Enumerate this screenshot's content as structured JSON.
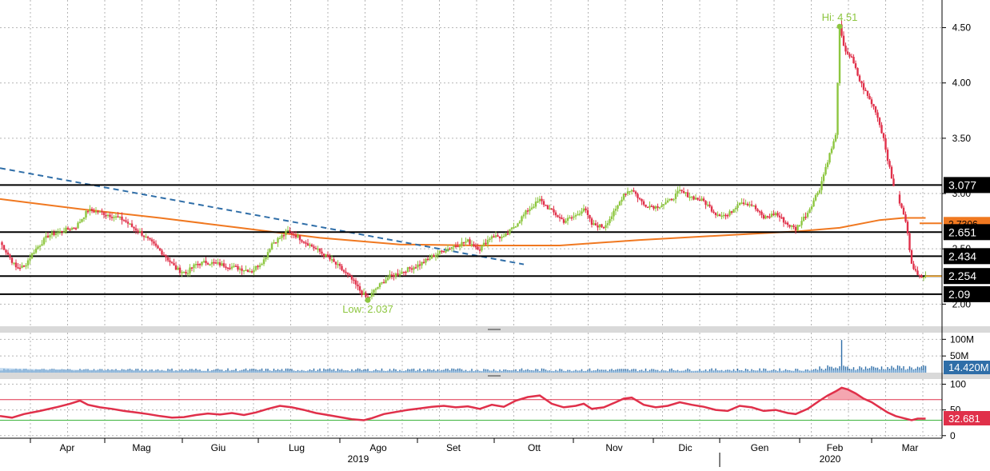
{
  "chart_data": {
    "type": "candlestick",
    "months": [
      "Apr",
      "Mag",
      "Giu",
      "Lug",
      "Ago",
      "Set",
      "Ott",
      "Nov",
      "Dic",
      "Gen",
      "Feb",
      "Mar"
    ],
    "years": [
      "2019",
      "2020"
    ],
    "price_panel": {
      "y_ticks": [
        "4.50",
        "4.00",
        "3.50",
        "3.00",
        "2.50",
        "2.00"
      ],
      "ylim": [
        1.8,
        4.75
      ],
      "price_points": [
        [
          0,
          2.56
        ],
        [
          4,
          2.45
        ],
        [
          8,
          2.33
        ],
        [
          12,
          2.34
        ],
        [
          17,
          2.48
        ],
        [
          24,
          2.62
        ],
        [
          31,
          2.66
        ],
        [
          38,
          2.7
        ],
        [
          44,
          2.85
        ],
        [
          50,
          2.83
        ],
        [
          56,
          2.8
        ],
        [
          62,
          2.76
        ],
        [
          66,
          2.7
        ],
        [
          70,
          2.65
        ],
        [
          76,
          2.55
        ],
        [
          82,
          2.45
        ],
        [
          88,
          2.32
        ],
        [
          93,
          2.28
        ],
        [
          98,
          2.36
        ],
        [
          103,
          2.38
        ],
        [
          110,
          2.36
        ],
        [
          118,
          2.33
        ],
        [
          126,
          2.3
        ],
        [
          132,
          2.4
        ],
        [
          136,
          2.55
        ],
        [
          140,
          2.6
        ],
        [
          144,
          2.66
        ],
        [
          148,
          2.62
        ],
        [
          152,
          2.57
        ],
        [
          158,
          2.5
        ],
        [
          164,
          2.42
        ],
        [
          170,
          2.33
        ],
        [
          176,
          2.22
        ],
        [
          181,
          2.1
        ],
        [
          184,
          2.05
        ],
        [
          188,
          2.14
        ],
        [
          194,
          2.24
        ],
        [
          202,
          2.3
        ],
        [
          210,
          2.36
        ],
        [
          218,
          2.45
        ],
        [
          226,
          2.52
        ],
        [
          234,
          2.57
        ],
        [
          240,
          2.5
        ],
        [
          246,
          2.62
        ],
        [
          252,
          2.6
        ],
        [
          258,
          2.72
        ],
        [
          264,
          2.85
        ],
        [
          270,
          2.94
        ],
        [
          276,
          2.84
        ],
        [
          282,
          2.75
        ],
        [
          288,
          2.8
        ],
        [
          292,
          2.87
        ],
        [
          296,
          2.72
        ],
        [
          302,
          2.7
        ],
        [
          308,
          2.85
        ],
        [
          312,
          3.0
        ],
        [
          316,
          3.04
        ],
        [
          322,
          2.9
        ],
        [
          328,
          2.88
        ],
        [
          334,
          2.92
        ],
        [
          340,
          3.02
        ],
        [
          346,
          2.97
        ],
        [
          352,
          2.93
        ],
        [
          358,
          2.82
        ],
        [
          364,
          2.8
        ],
        [
          370,
          2.93
        ],
        [
          376,
          2.9
        ],
        [
          382,
          2.78
        ],
        [
          388,
          2.82
        ],
        [
          394,
          2.72
        ],
        [
          398,
          2.68
        ],
        [
          404,
          2.83
        ],
        [
          410,
          3.05
        ],
        [
          414,
          3.3
        ],
        [
          418,
          3.52
        ],
        [
          420,
          4.51
        ],
        [
          422,
          4.32
        ],
        [
          426,
          4.22
        ],
        [
          430,
          4.02
        ],
        [
          434,
          3.88
        ],
        [
          438,
          3.75
        ],
        [
          442,
          3.5
        ],
        [
          446,
          3.13
        ],
        [
          450,
          2.92
        ],
        [
          453,
          2.75
        ],
        [
          456,
          2.38
        ],
        [
          459,
          2.25
        ],
        [
          463,
          2.27
        ]
      ],
      "ma200": [
        [
          0,
          2.95
        ],
        [
          40,
          2.86
        ],
        [
          80,
          2.78
        ],
        [
          120,
          2.69
        ],
        [
          160,
          2.6
        ],
        [
          200,
          2.54
        ],
        [
          240,
          2.53
        ],
        [
          280,
          2.53
        ],
        [
          320,
          2.58
        ],
        [
          360,
          2.62
        ],
        [
          400,
          2.66
        ],
        [
          420,
          2.69
        ],
        [
          440,
          2.76
        ],
        [
          452,
          2.78
        ],
        [
          463,
          2.78
        ]
      ],
      "trendline": [
        [
          0,
          3.23
        ],
        [
          262,
          2.36
        ]
      ],
      "support_levels": [
        {
          "label": "3.077",
          "value": 3.077,
          "color": "#000000"
        },
        {
          "label": "2.651",
          "value": 2.651,
          "color": "#000000"
        },
        {
          "label": "2.434",
          "value": 2.434,
          "color": "#000000"
        },
        {
          "label": "2.254",
          "value": 2.254,
          "color": "#000000"
        },
        {
          "label": "2.09",
          "value": 2.09,
          "color": "#000000"
        }
      ],
      "ma200_label": "2.7306",
      "high": {
        "label": "Hi: 4.51",
        "value": 4.51,
        "day": 420
      },
      "low": {
        "label": "Low: 2.037",
        "value": 2.037,
        "day": 184
      }
    },
    "volume_panel": {
      "y_ticks": [
        "100M",
        "50M"
      ],
      "ylim": [
        0,
        120
      ],
      "last_label": "14.420M",
      "average_level": 10,
      "spike": {
        "day": 421,
        "value": 98
      }
    },
    "rsi_panel": {
      "y_ticks": [
        "100",
        "50",
        "0"
      ],
      "ylim": [
        -5,
        110
      ],
      "overbought": 70,
      "oversold": 30,
      "last_label": "32.681",
      "points": [
        [
          0,
          38
        ],
        [
          6,
          35
        ],
        [
          12,
          42
        ],
        [
          20,
          48
        ],
        [
          28,
          55
        ],
        [
          35,
          62
        ],
        [
          40,
          68
        ],
        [
          44,
          60
        ],
        [
          50,
          55
        ],
        [
          56,
          52
        ],
        [
          62,
          48
        ],
        [
          68,
          45
        ],
        [
          74,
          42
        ],
        [
          80,
          38
        ],
        [
          86,
          35
        ],
        [
          92,
          36
        ],
        [
          98,
          40
        ],
        [
          104,
          43
        ],
        [
          110,
          41
        ],
        [
          116,
          44
        ],
        [
          122,
          40
        ],
        [
          128,
          45
        ],
        [
          134,
          52
        ],
        [
          140,
          58
        ],
        [
          146,
          55
        ],
        [
          152,
          50
        ],
        [
          158,
          44
        ],
        [
          164,
          40
        ],
        [
          170,
          36
        ],
        [
          176,
          32
        ],
        [
          182,
          30
        ],
        [
          186,
          34
        ],
        [
          192,
          42
        ],
        [
          198,
          46
        ],
        [
          204,
          50
        ],
        [
          210,
          53
        ],
        [
          216,
          56
        ],
        [
          222,
          58
        ],
        [
          228,
          55
        ],
        [
          234,
          57
        ],
        [
          240,
          52
        ],
        [
          246,
          60
        ],
        [
          252,
          56
        ],
        [
          258,
          68
        ],
        [
          264,
          75
        ],
        [
          270,
          78
        ],
        [
          276,
          62
        ],
        [
          282,
          55
        ],
        [
          288,
          58
        ],
        [
          292,
          62
        ],
        [
          296,
          52
        ],
        [
          302,
          55
        ],
        [
          308,
          65
        ],
        [
          312,
          72
        ],
        [
          316,
          74
        ],
        [
          322,
          60
        ],
        [
          328,
          55
        ],
        [
          334,
          58
        ],
        [
          340,
          65
        ],
        [
          346,
          60
        ],
        [
          352,
          56
        ],
        [
          358,
          50
        ],
        [
          364,
          48
        ],
        [
          370,
          58
        ],
        [
          376,
          55
        ],
        [
          382,
          48
        ],
        [
          388,
          50
        ],
        [
          394,
          44
        ],
        [
          398,
          42
        ],
        [
          404,
          52
        ],
        [
          410,
          68
        ],
        [
          414,
          78
        ],
        [
          418,
          86
        ],
        [
          421,
          93
        ],
        [
          424,
          90
        ],
        [
          428,
          82
        ],
        [
          432,
          72
        ],
        [
          436,
          65
        ],
        [
          440,
          55
        ],
        [
          444,
          45
        ],
        [
          448,
          38
        ],
        [
          452,
          34
        ],
        [
          456,
          30
        ],
        [
          459,
          33
        ],
        [
          463,
          33
        ]
      ]
    }
  }
}
